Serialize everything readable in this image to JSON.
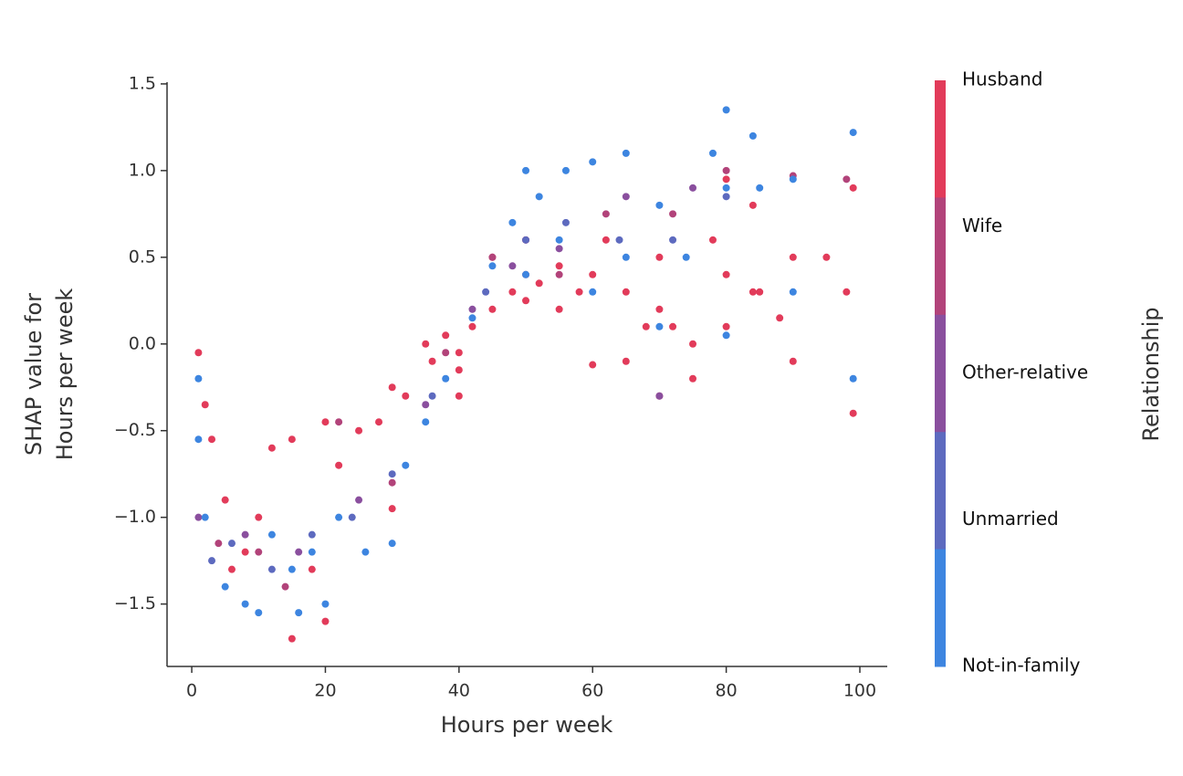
{
  "chart_data": {
    "type": "scatter",
    "x_label": "Hours per week",
    "y_label": [
      "SHAP value for",
      "Hours per week"
    ],
    "colorbar_label": "Relationship",
    "xlim": [
      -3.7,
      104.1
    ],
    "ylim": [
      -1.86,
      1.51
    ],
    "xticks": [
      0,
      20,
      40,
      60,
      80,
      100
    ],
    "yticks": [
      {
        "value": -1.5,
        "label": "−1.5"
      },
      {
        "value": -1.0,
        "label": "−1.0"
      },
      {
        "value": -0.5,
        "label": "−0.5"
      },
      {
        "value": 0,
        "label": "0.0"
      },
      0.5,
      {
        "value": 1.0,
        "label": "1.0"
      },
      1.5
    ],
    "series": [
      {
        "name": "Husband",
        "color": "#e23b5a",
        "x": [
          1,
          2,
          3,
          5,
          6,
          8,
          10,
          12,
          15,
          15,
          18,
          20,
          20,
          22,
          25,
          28,
          30,
          30,
          32,
          35,
          36,
          38,
          40,
          40,
          40,
          42,
          45,
          45,
          48,
          50,
          50,
          50,
          52,
          55,
          55,
          58,
          60,
          60,
          62,
          65,
          65,
          68,
          70,
          70,
          70,
          72,
          75,
          75,
          78,
          80,
          80,
          80,
          84,
          84,
          85,
          88,
          90,
          90,
          95,
          98,
          99,
          99
        ],
        "values": [
          -0.05,
          -0.35,
          -0.55,
          -0.9,
          -1.3,
          -1.2,
          -1.0,
          -0.6,
          -1.7,
          -0.55,
          -1.3,
          -1.6,
          -0.45,
          -0.7,
          -0.5,
          -0.45,
          -0.25,
          -0.95,
          -0.3,
          0.0,
          -0.1,
          0.05,
          -0.05,
          -0.3,
          -0.15,
          0.1,
          0.2,
          0.5,
          0.3,
          0.25,
          0.4,
          0.6,
          0.35,
          0.45,
          0.2,
          0.3,
          0.4,
          -0.12,
          0.6,
          0.3,
          -0.1,
          0.1,
          -0.3,
          0.2,
          0.5,
          0.1,
          0.0,
          -0.2,
          0.6,
          0.4,
          0.95,
          0.1,
          0.8,
          0.3,
          0.3,
          0.15,
          -0.1,
          0.5,
          0.5,
          0.3,
          -0.4,
          0.9
        ]
      },
      {
        "name": "Wife",
        "color": "#b2437a",
        "x": [
          4,
          10,
          14,
          22,
          30,
          38,
          45,
          50,
          55,
          62,
          72,
          80,
          90,
          98
        ],
        "values": [
          -1.15,
          -1.2,
          -1.4,
          -0.45,
          -0.8,
          -0.05,
          0.5,
          0.6,
          0.4,
          0.75,
          0.75,
          1.0,
          0.97,
          0.95
        ]
      },
      {
        "name": "Other-relative",
        "color": "#8a4f9e",
        "x": [
          1,
          8,
          16,
          25,
          35,
          42,
          48,
          55,
          65,
          70,
          75
        ],
        "values": [
          -1.0,
          -1.1,
          -1.2,
          -0.9,
          -0.35,
          0.2,
          0.45,
          0.55,
          0.85,
          -0.3,
          0.9
        ]
      },
      {
        "name": "Unmarried",
        "color": "#5d6abf",
        "x": [
          3,
          6,
          12,
          18,
          24,
          30,
          36,
          44,
          50,
          56,
          64,
          72,
          80
        ],
        "values": [
          -1.25,
          -1.15,
          -1.3,
          -1.1,
          -1.0,
          -0.75,
          -0.3,
          0.3,
          0.6,
          0.7,
          0.6,
          0.6,
          0.85
        ]
      },
      {
        "name": "Not-in-family",
        "color": "#3d85e0",
        "x": [
          1,
          1,
          2,
          5,
          8,
          10,
          12,
          15,
          16,
          18,
          20,
          22,
          26,
          30,
          32,
          35,
          38,
          42,
          45,
          48,
          50,
          50,
          52,
          55,
          56,
          60,
          60,
          65,
          65,
          70,
          70,
          74,
          78,
          80,
          80,
          80,
          84,
          85,
          90,
          90,
          99,
          99
        ],
        "values": [
          -0.2,
          -0.55,
          -1.0,
          -1.4,
          -1.5,
          -1.55,
          -1.1,
          -1.3,
          -1.55,
          -1.2,
          -1.5,
          -1.0,
          -1.2,
          -1.15,
          -0.7,
          -0.45,
          -0.2,
          0.15,
          0.45,
          0.7,
          1.0,
          0.4,
          0.85,
          0.6,
          1.0,
          1.05,
          0.3,
          1.1,
          0.5,
          0.8,
          0.1,
          0.5,
          1.1,
          1.35,
          0.9,
          0.05,
          1.2,
          0.9,
          0.95,
          0.3,
          1.22,
          -0.2
        ]
      }
    ]
  }
}
